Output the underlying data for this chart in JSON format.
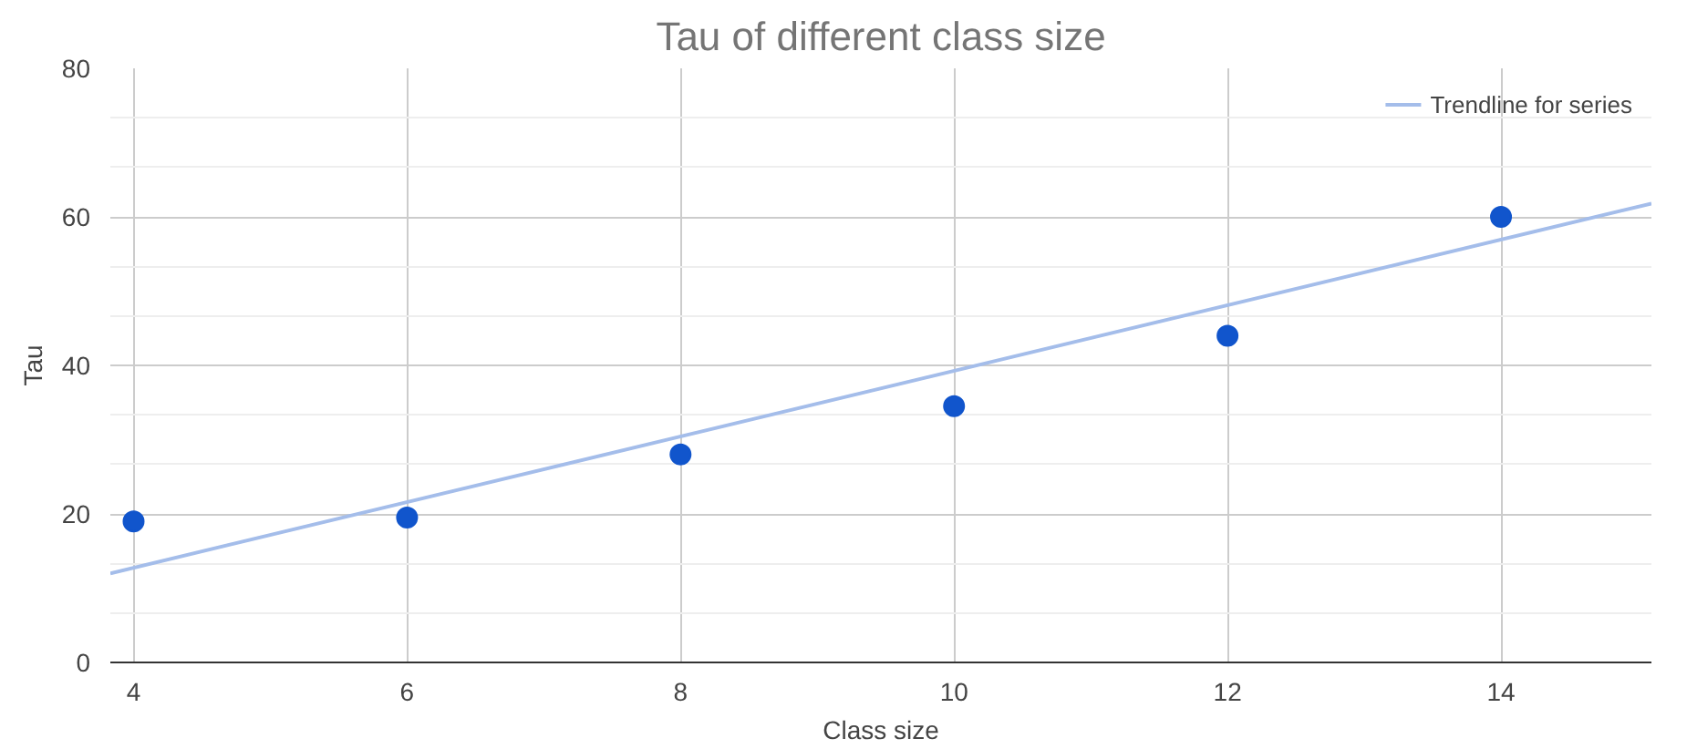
{
  "chart_data": {
    "type": "scatter",
    "title": "Tau of different class size",
    "xlabel": "Class size",
    "ylabel": "Tau",
    "x": [
      4,
      6,
      8,
      10,
      12,
      14
    ],
    "series": [
      {
        "color": "#1155cc",
        "marker": "circle",
        "values": [
          19,
          19.5,
          28,
          34.5,
          44,
          60
        ]
      },
      {
        "name": "Trendline for series",
        "type": "line",
        "marker": "none",
        "color": "#a4bdea",
        "x": [
          3.83,
          15.1
        ],
        "values": [
          12,
          61.8
        ]
      }
    ],
    "xlim": [
      3.83,
      15.1
    ],
    "xticks": [
      4,
      6,
      8,
      10,
      12,
      14
    ],
    "ylim": [
      0,
      80
    ],
    "yticks": [
      0,
      20,
      40,
      60,
      80
    ],
    "grid": true,
    "legend": "top right"
  }
}
